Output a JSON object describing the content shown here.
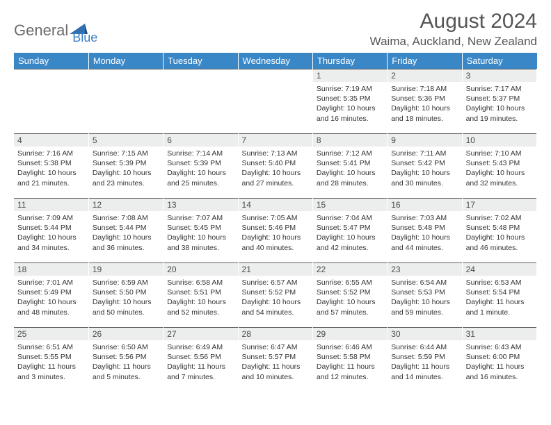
{
  "brand": {
    "part1": "General",
    "part2": "Blue"
  },
  "title": "August 2024",
  "location": "Waima, Auckland, New Zealand",
  "colors": {
    "header_bg": "#3a87c7",
    "header_text": "#ffffff",
    "daynum_bg": "#eceded",
    "body_text": "#333333",
    "title_text": "#555555",
    "brand_gray": "#6b6b6b",
    "brand_blue": "#3a7fc4",
    "rule": "#5a5a5a"
  },
  "day_headers": [
    "Sunday",
    "Monday",
    "Tuesday",
    "Wednesday",
    "Thursday",
    "Friday",
    "Saturday"
  ],
  "weeks": [
    [
      null,
      null,
      null,
      null,
      {
        "n": "1",
        "sr": "7:19 AM",
        "ss": "5:35 PM",
        "dl": "10 hours and 16 minutes."
      },
      {
        "n": "2",
        "sr": "7:18 AM",
        "ss": "5:36 PM",
        "dl": "10 hours and 18 minutes."
      },
      {
        "n": "3",
        "sr": "7:17 AM",
        "ss": "5:37 PM",
        "dl": "10 hours and 19 minutes."
      }
    ],
    [
      {
        "n": "4",
        "sr": "7:16 AM",
        "ss": "5:38 PM",
        "dl": "10 hours and 21 minutes."
      },
      {
        "n": "5",
        "sr": "7:15 AM",
        "ss": "5:39 PM",
        "dl": "10 hours and 23 minutes."
      },
      {
        "n": "6",
        "sr": "7:14 AM",
        "ss": "5:39 PM",
        "dl": "10 hours and 25 minutes."
      },
      {
        "n": "7",
        "sr": "7:13 AM",
        "ss": "5:40 PM",
        "dl": "10 hours and 27 minutes."
      },
      {
        "n": "8",
        "sr": "7:12 AM",
        "ss": "5:41 PM",
        "dl": "10 hours and 28 minutes."
      },
      {
        "n": "9",
        "sr": "7:11 AM",
        "ss": "5:42 PM",
        "dl": "10 hours and 30 minutes."
      },
      {
        "n": "10",
        "sr": "7:10 AM",
        "ss": "5:43 PM",
        "dl": "10 hours and 32 minutes."
      }
    ],
    [
      {
        "n": "11",
        "sr": "7:09 AM",
        "ss": "5:44 PM",
        "dl": "10 hours and 34 minutes."
      },
      {
        "n": "12",
        "sr": "7:08 AM",
        "ss": "5:44 PM",
        "dl": "10 hours and 36 minutes."
      },
      {
        "n": "13",
        "sr": "7:07 AM",
        "ss": "5:45 PM",
        "dl": "10 hours and 38 minutes."
      },
      {
        "n": "14",
        "sr": "7:05 AM",
        "ss": "5:46 PM",
        "dl": "10 hours and 40 minutes."
      },
      {
        "n": "15",
        "sr": "7:04 AM",
        "ss": "5:47 PM",
        "dl": "10 hours and 42 minutes."
      },
      {
        "n": "16",
        "sr": "7:03 AM",
        "ss": "5:48 PM",
        "dl": "10 hours and 44 minutes."
      },
      {
        "n": "17",
        "sr": "7:02 AM",
        "ss": "5:48 PM",
        "dl": "10 hours and 46 minutes."
      }
    ],
    [
      {
        "n": "18",
        "sr": "7:01 AM",
        "ss": "5:49 PM",
        "dl": "10 hours and 48 minutes."
      },
      {
        "n": "19",
        "sr": "6:59 AM",
        "ss": "5:50 PM",
        "dl": "10 hours and 50 minutes."
      },
      {
        "n": "20",
        "sr": "6:58 AM",
        "ss": "5:51 PM",
        "dl": "10 hours and 52 minutes."
      },
      {
        "n": "21",
        "sr": "6:57 AM",
        "ss": "5:52 PM",
        "dl": "10 hours and 54 minutes."
      },
      {
        "n": "22",
        "sr": "6:55 AM",
        "ss": "5:52 PM",
        "dl": "10 hours and 57 minutes."
      },
      {
        "n": "23",
        "sr": "6:54 AM",
        "ss": "5:53 PM",
        "dl": "10 hours and 59 minutes."
      },
      {
        "n": "24",
        "sr": "6:53 AM",
        "ss": "5:54 PM",
        "dl": "11 hours and 1 minute."
      }
    ],
    [
      {
        "n": "25",
        "sr": "6:51 AM",
        "ss": "5:55 PM",
        "dl": "11 hours and 3 minutes."
      },
      {
        "n": "26",
        "sr": "6:50 AM",
        "ss": "5:56 PM",
        "dl": "11 hours and 5 minutes."
      },
      {
        "n": "27",
        "sr": "6:49 AM",
        "ss": "5:56 PM",
        "dl": "11 hours and 7 minutes."
      },
      {
        "n": "28",
        "sr": "6:47 AM",
        "ss": "5:57 PM",
        "dl": "11 hours and 10 minutes."
      },
      {
        "n": "29",
        "sr": "6:46 AM",
        "ss": "5:58 PM",
        "dl": "11 hours and 12 minutes."
      },
      {
        "n": "30",
        "sr": "6:44 AM",
        "ss": "5:59 PM",
        "dl": "11 hours and 14 minutes."
      },
      {
        "n": "31",
        "sr": "6:43 AM",
        "ss": "6:00 PM",
        "dl": "11 hours and 16 minutes."
      }
    ]
  ],
  "labels": {
    "sunrise": "Sunrise:",
    "sunset": "Sunset:",
    "daylight": "Daylight:"
  }
}
